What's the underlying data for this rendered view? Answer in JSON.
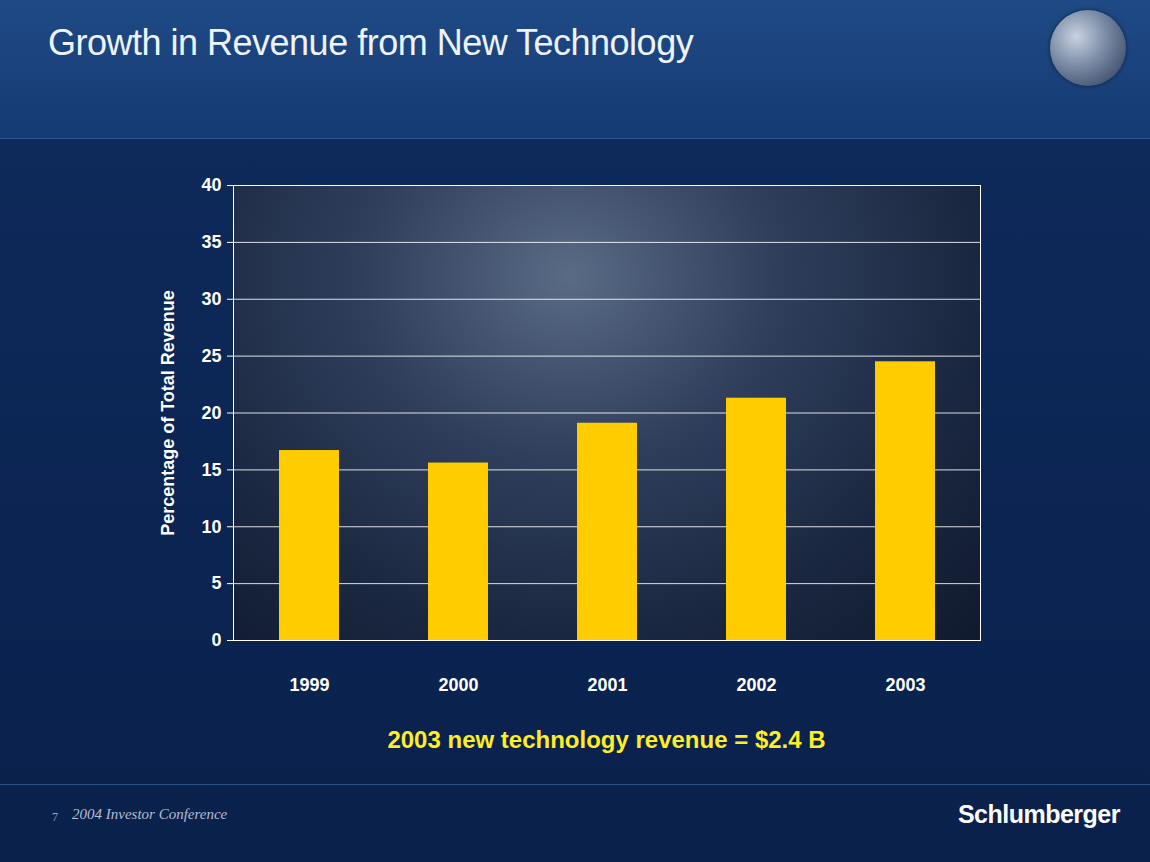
{
  "chart_data": {
    "type": "bar",
    "title": "Growth in Revenue from New Technology",
    "categories": [
      "1999",
      "2000",
      "2001",
      "2002",
      "2003"
    ],
    "values": [
      16.7,
      15.6,
      19.1,
      21.3,
      24.5
    ],
    "color": "#ffcc00",
    "ylabel": "Percentage of Total Revenue",
    "ylim": [
      0,
      40
    ],
    "yticks": [
      0,
      5,
      10,
      15,
      20,
      25,
      30,
      35,
      40
    ],
    "grid": true,
    "annotations": [
      "2003 new technology revenue = $2.4 B"
    ]
  },
  "footer": {
    "page": "7",
    "text": "2004 Investor Conference",
    "logo": "Schlumberger"
  }
}
